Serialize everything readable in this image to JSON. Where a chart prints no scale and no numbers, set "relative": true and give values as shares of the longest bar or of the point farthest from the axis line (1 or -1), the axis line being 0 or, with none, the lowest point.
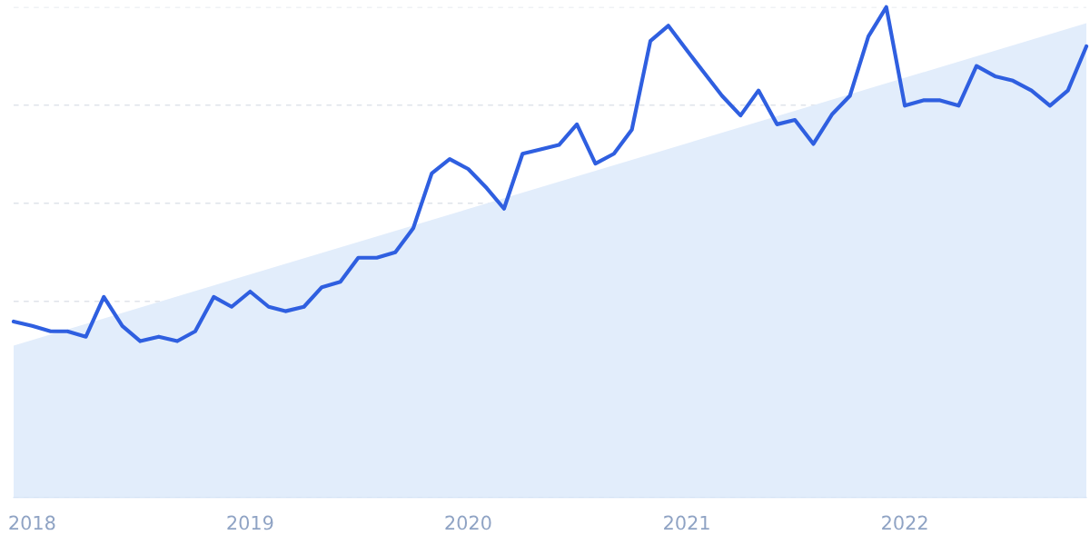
{
  "chart_data": {
    "type": "line",
    "relative": true,
    "grid": "y",
    "legend": false,
    "marker": "none",
    "line_style": "solid",
    "x": [
      "2017-12",
      "2018-01",
      "2018-02",
      "2018-03",
      "2018-04",
      "2018-05",
      "2018-06",
      "2018-07",
      "2018-08",
      "2018-09",
      "2018-10",
      "2018-11",
      "2018-12",
      "2019-01",
      "2019-02",
      "2019-03",
      "2019-04",
      "2019-05",
      "2019-06",
      "2019-07",
      "2019-08",
      "2019-09",
      "2019-10",
      "2019-11",
      "2019-12",
      "2020-01",
      "2020-02",
      "2020-03",
      "2020-04",
      "2020-05",
      "2020-06",
      "2020-07",
      "2020-08",
      "2020-09",
      "2020-10",
      "2020-11",
      "2020-12",
      "2021-01",
      "2021-02",
      "2021-03",
      "2021-04",
      "2021-05",
      "2021-06",
      "2021-07",
      "2021-08",
      "2021-09",
      "2021-10",
      "2021-11",
      "2021-12",
      "2022-01",
      "2022-02",
      "2022-03",
      "2022-04",
      "2022-05",
      "2022-06",
      "2022-07",
      "2022-08",
      "2022-09",
      "2022-10",
      "2022-11"
    ],
    "xlim": [
      "2017-12",
      "2022-11"
    ],
    "xticks": [
      {
        "value": "2018-01",
        "label": "2018"
      },
      {
        "value": "2019-01",
        "label": "2019"
      },
      {
        "value": "2020-01",
        "label": "2020"
      },
      {
        "value": "2021-01",
        "label": "2021"
      },
      {
        "value": "2022-01",
        "label": "2022"
      }
    ],
    "series": [
      {
        "type": "area",
        "color": "#e2edfb",
        "x": [
          "2017-12",
          "2022-11"
        ],
        "values": [
          0.31,
          0.967
        ]
      },
      {
        "color": "#2f5fe0",
        "values": [
          0.359,
          0.35,
          0.339,
          0.339,
          0.328,
          0.409,
          0.35,
          0.319,
          0.328,
          0.319,
          0.339,
          0.409,
          0.389,
          0.42,
          0.389,
          0.38,
          0.389,
          0.429,
          0.44,
          0.489,
          0.489,
          0.5,
          0.549,
          0.661,
          0.69,
          0.67,
          0.631,
          0.589,
          0.701,
          0.71,
          0.719,
          0.761,
          0.681,
          0.701,
          0.75,
          0.931,
          0.962,
          0.912,
          0.863,
          0.819,
          0.779,
          0.83,
          0.761,
          0.77,
          0.721,
          0.781,
          0.819,
          0.94,
          1,
          0.799,
          0.81,
          0.81,
          0.799,
          0.88,
          0.859,
          0.85,
          0.83,
          0.799,
          0.83,
          0.92
        ]
      }
    ]
  }
}
